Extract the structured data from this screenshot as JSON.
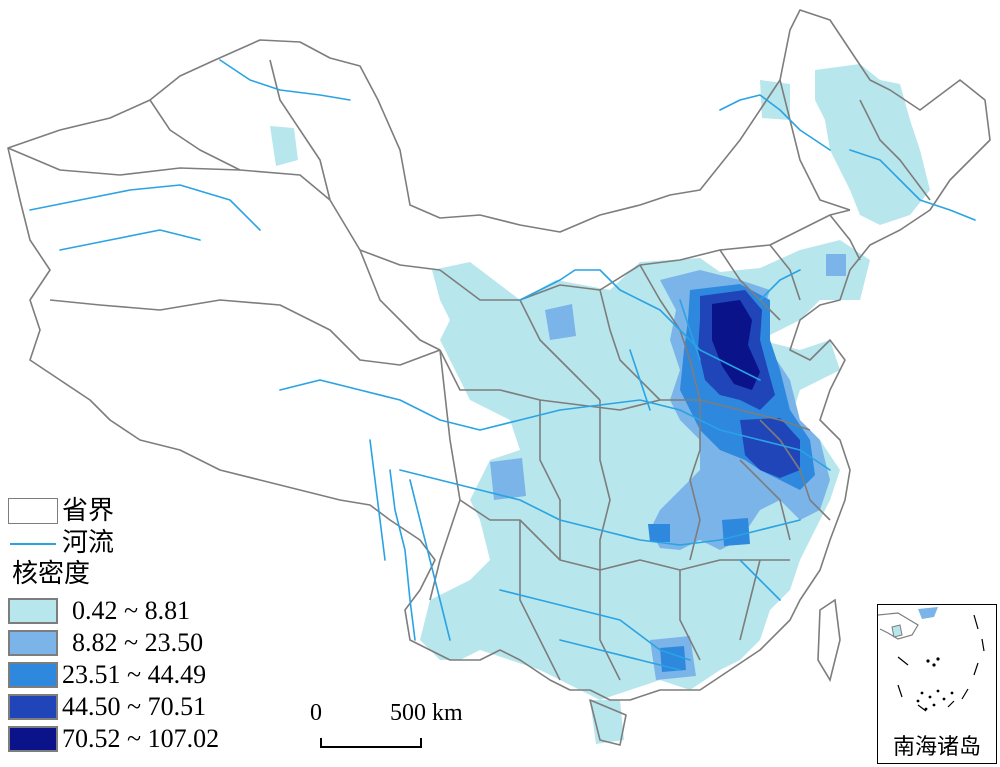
{
  "legend": {
    "province_label": "省界",
    "river_label": "河流",
    "density_title": "核密度",
    "classes": [
      {
        "range": "0.42 ~ 8.81",
        "color": "#b8e6ed"
      },
      {
        "range": "8.82 ~ 23.50",
        "color": "#7ab4e8"
      },
      {
        "range": "23.51 ~ 44.49",
        "color": "#2e88de"
      },
      {
        "range": "44.50 ~ 70.51",
        "color": "#1f45b8"
      },
      {
        "range": "70.52 ~ 107.02",
        "color": "#0b138a"
      }
    ]
  },
  "scalebar": {
    "zero": "0",
    "distance": "500 km"
  },
  "inset": {
    "label": "南海诸岛"
  },
  "colors": {
    "boundary": "#7d7d7d",
    "river": "#29a3e3",
    "background": "#ffffff"
  }
}
